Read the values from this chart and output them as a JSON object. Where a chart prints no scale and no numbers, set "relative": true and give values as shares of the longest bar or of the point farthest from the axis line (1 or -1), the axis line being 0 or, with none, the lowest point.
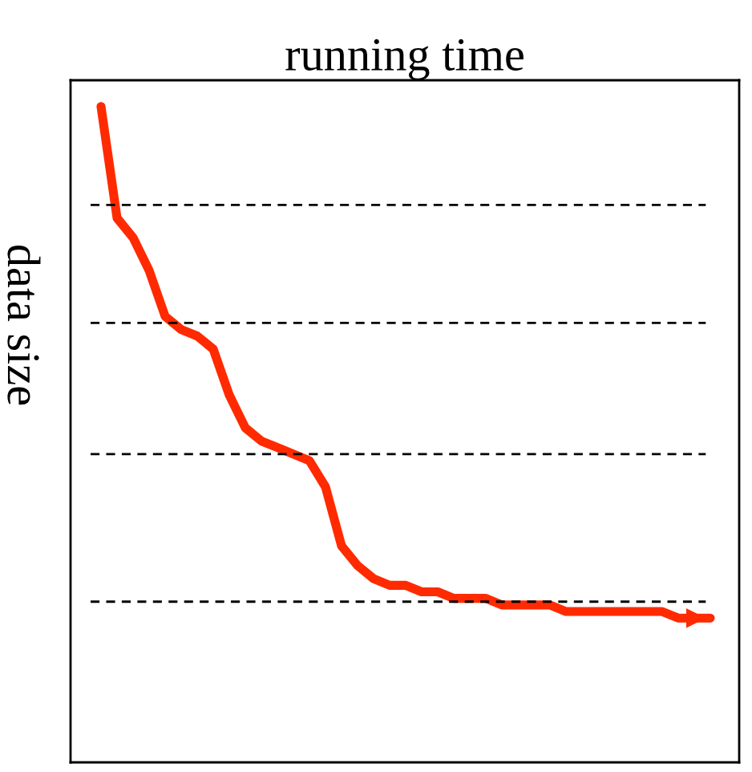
{
  "chart_data": {
    "type": "line",
    "title": "running time",
    "ylabel": "data size",
    "relative": true,
    "categories": [
      null,
      null,
      null,
      null,
      null,
      null,
      null,
      null,
      null,
      null,
      null,
      null,
      null,
      null,
      null,
      null,
      null,
      null,
      null,
      null,
      null,
      null,
      null,
      null,
      null,
      null,
      null,
      null,
      null,
      null,
      null,
      null,
      null,
      null,
      null,
      null,
      null,
      null,
      null
    ],
    "series": [
      {
        "color": "#ff2a00",
        "values": [
          1.0,
          0.83,
          0.8,
          0.75,
          0.68,
          0.66,
          0.65,
          0.63,
          0.56,
          0.51,
          0.49,
          0.48,
          0.47,
          0.46,
          0.42,
          0.33,
          0.3,
          0.28,
          0.27,
          0.27,
          0.26,
          0.26,
          0.25,
          0.25,
          0.25,
          0.24,
          0.24,
          0.24,
          0.24,
          0.23,
          0.23,
          0.23,
          0.23,
          0.23,
          0.23,
          0.23,
          0.22,
          0.22,
          0.22
        ]
      }
    ],
    "ref_lines": [
      {
        "axis": "y",
        "value": 0.85,
        "color": "#000000",
        "line_style": "dashed"
      },
      {
        "axis": "y",
        "value": 0.67,
        "color": "#000000",
        "line_style": "dashed"
      },
      {
        "axis": "y",
        "value": 0.47,
        "color": "#000000",
        "line_style": "dashed"
      },
      {
        "axis": "y",
        "value": 0.245,
        "color": "#000000",
        "line_style": "dashed"
      }
    ],
    "tick_labels": false
  }
}
